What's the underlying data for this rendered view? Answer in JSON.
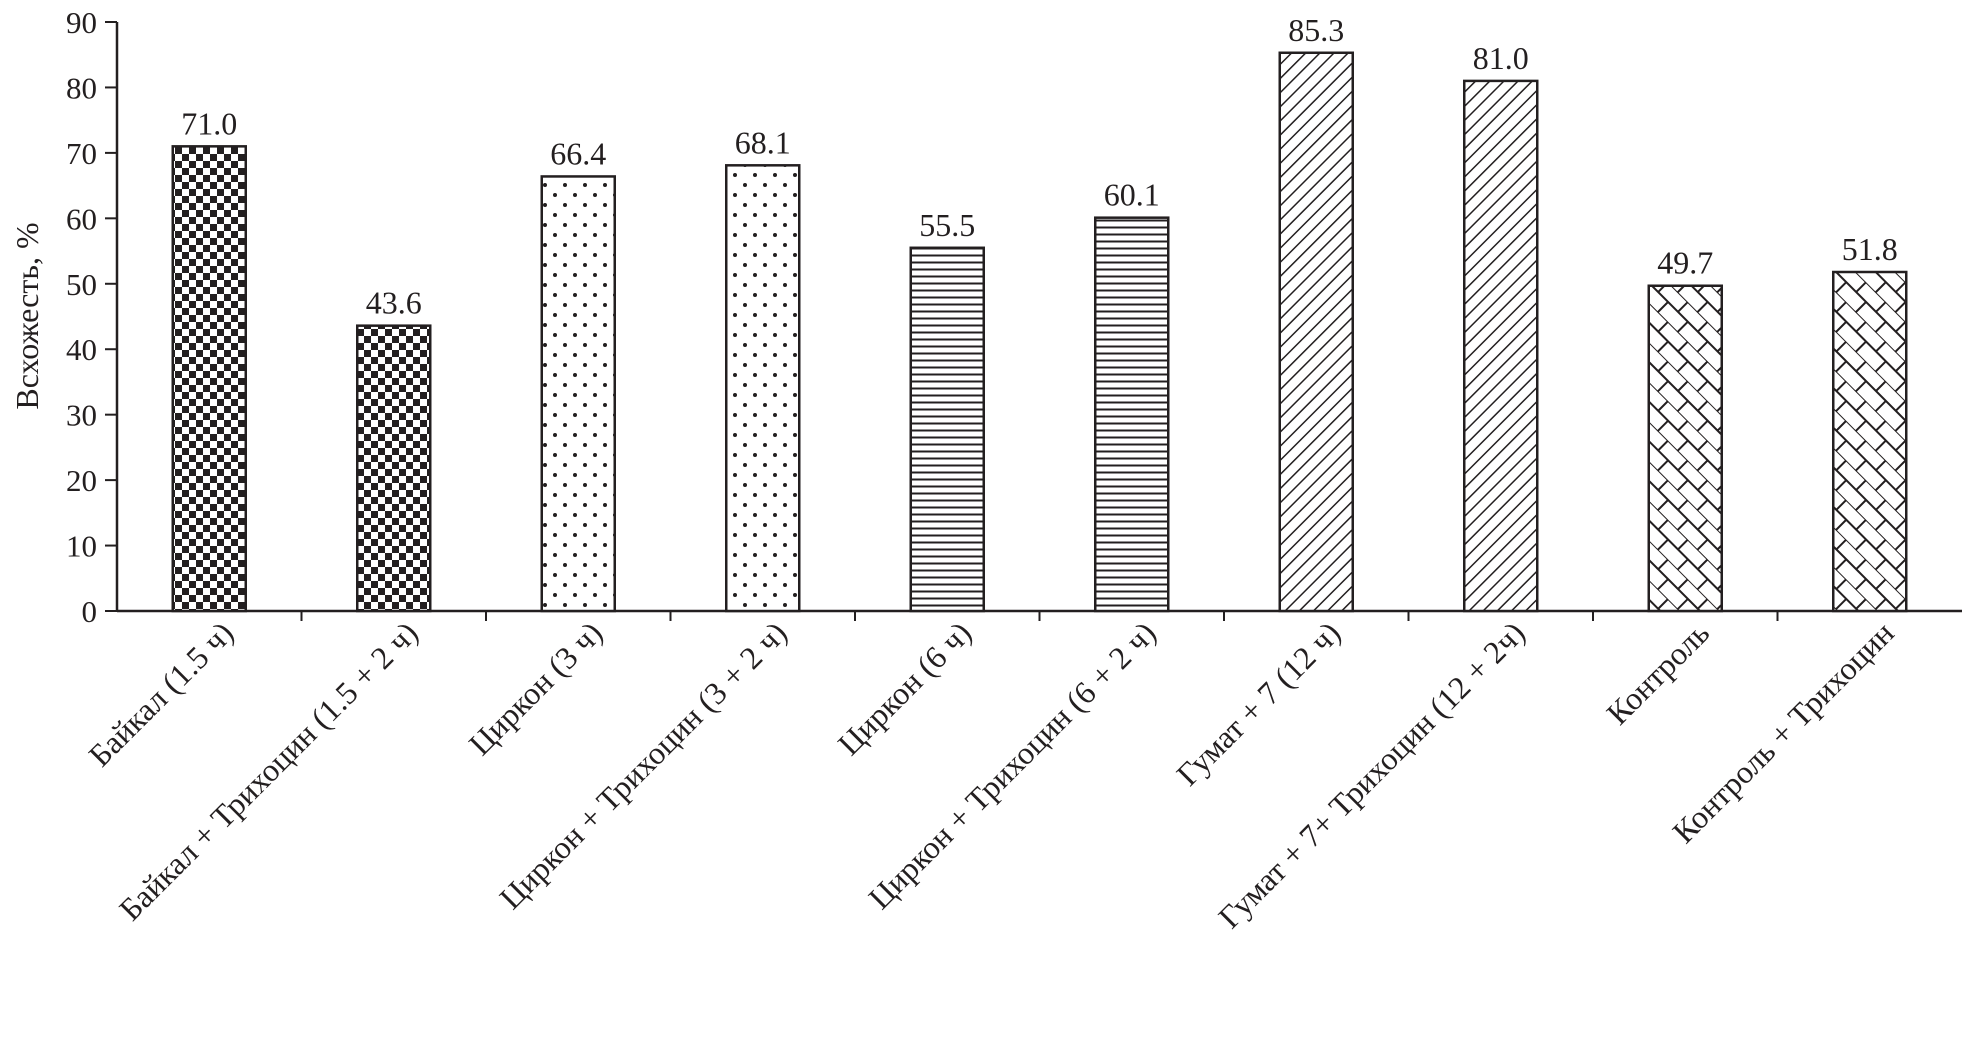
{
  "chart_data": {
    "type": "bar",
    "title": "",
    "xlabel": "",
    "ylabel": "Всхожесть, %",
    "ylim": [
      0,
      90
    ],
    "yticks": [
      0,
      10,
      20,
      30,
      40,
      50,
      60,
      70,
      80,
      90
    ],
    "grid": false,
    "categories": [
      "Байкал (1.5 ч)",
      "Байкал + Трихоцин (1.5 + 2 ч)",
      "Циркон (3 ч)",
      "Циркон + Трихоцин (3 + 2 ч)",
      "Циркон (6 ч)",
      "Циркон + Трихоцин (6 + 2 ч)",
      "Гумат + 7 (12 ч)",
      "Гумат + 7+ Трихоцин (12 + 2ч)",
      "Контроль",
      "Контроль + Трихоцин"
    ],
    "values": [
      71.0,
      43.6,
      66.4,
      68.1,
      55.5,
      60.1,
      85.3,
      81.0,
      49.7,
      51.8
    ],
    "value_labels": [
      "71.0",
      "43.6",
      "66.4",
      "68.1",
      "55.5",
      "60.1",
      "85.3",
      "81.0",
      "49.7",
      "51.8"
    ],
    "bar_patterns": [
      "checker",
      "checker",
      "dots",
      "dots",
      "hlines",
      "hlines",
      "diagonal",
      "diagonal",
      "brick",
      "brick"
    ],
    "colors": {
      "ink": "#231f20",
      "background": "#ffffff"
    }
  }
}
